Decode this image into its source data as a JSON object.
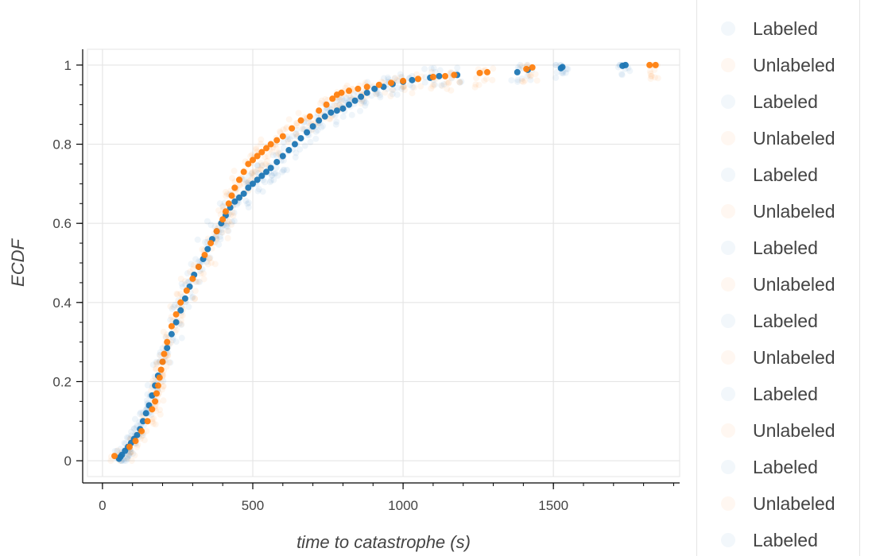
{
  "chart_data": {
    "type": "scatter",
    "xlabel": "time to catastrophe (s)",
    "ylabel": "ECDF",
    "xlim": [
      -50,
      1920
    ],
    "ylim": [
      -0.04,
      1.04
    ],
    "grid": true,
    "legend_placement": "right, outside plot",
    "x_ticks": [
      0,
      500,
      1000,
      1500
    ],
    "x_tick_labels": [
      "0",
      "500",
      "1000",
      "1500"
    ],
    "y_ticks": [
      0,
      0.2,
      0.4,
      0.6,
      0.8,
      1
    ],
    "y_tick_labels": [
      "0",
      "0.2",
      "0.4",
      "0.6",
      "0.8",
      "1"
    ],
    "colors": {
      "Labeled": "#1f77b4",
      "Unlabeled": "#ff7f0e"
    },
    "series": [
      {
        "name": "Labeled",
        "color": "#1f77b4",
        "points": [
          [
            55,
            0.005
          ],
          [
            60,
            0.01
          ],
          [
            65,
            0.015
          ],
          [
            75,
            0.025
          ],
          [
            85,
            0.035
          ],
          [
            95,
            0.045
          ],
          [
            105,
            0.055
          ],
          [
            115,
            0.065
          ],
          [
            125,
            0.08
          ],
          [
            135,
            0.1
          ],
          [
            145,
            0.12
          ],
          [
            155,
            0.14
          ],
          [
            165,
            0.165
          ],
          [
            175,
            0.19
          ],
          [
            185,
            0.215
          ],
          [
            200,
            0.25
          ],
          [
            215,
            0.285
          ],
          [
            230,
            0.32
          ],
          [
            245,
            0.35
          ],
          [
            260,
            0.38
          ],
          [
            275,
            0.41
          ],
          [
            290,
            0.44
          ],
          [
            305,
            0.47
          ],
          [
            320,
            0.49
          ],
          [
            335,
            0.51
          ],
          [
            350,
            0.535
          ],
          [
            365,
            0.56
          ],
          [
            380,
            0.58
          ],
          [
            395,
            0.6
          ],
          [
            410,
            0.62
          ],
          [
            425,
            0.64
          ],
          [
            440,
            0.655
          ],
          [
            455,
            0.665
          ],
          [
            470,
            0.675
          ],
          [
            485,
            0.69
          ],
          [
            500,
            0.7
          ],
          [
            515,
            0.71
          ],
          [
            530,
            0.72
          ],
          [
            545,
            0.73
          ],
          [
            560,
            0.74
          ],
          [
            580,
            0.755
          ],
          [
            600,
            0.77
          ],
          [
            620,
            0.785
          ],
          [
            640,
            0.8
          ],
          [
            660,
            0.815
          ],
          [
            680,
            0.83
          ],
          [
            700,
            0.845
          ],
          [
            720,
            0.86
          ],
          [
            740,
            0.87
          ],
          [
            760,
            0.88
          ],
          [
            780,
            0.885
          ],
          [
            800,
            0.89
          ],
          [
            820,
            0.9
          ],
          [
            840,
            0.91
          ],
          [
            860,
            0.92
          ],
          [
            880,
            0.93
          ],
          [
            905,
            0.94
          ],
          [
            935,
            0.945
          ],
          [
            965,
            0.952
          ],
          [
            1000,
            0.958
          ],
          [
            1030,
            0.962
          ],
          [
            1090,
            0.968
          ],
          [
            1120,
            0.972
          ],
          [
            1180,
            0.975
          ],
          [
            1380,
            0.982
          ],
          [
            1415,
            0.988
          ],
          [
            1525,
            0.992
          ],
          [
            1530,
            0.995
          ],
          [
            1730,
            0.998
          ],
          [
            1740,
            1.0
          ]
        ]
      },
      {
        "name": "Unlabeled",
        "color": "#ff7f0e",
        "points": [
          [
            40,
            0.012
          ],
          [
            90,
            0.035
          ],
          [
            110,
            0.05
          ],
          [
            130,
            0.075
          ],
          [
            150,
            0.1
          ],
          [
            165,
            0.13
          ],
          [
            175,
            0.15
          ],
          [
            180,
            0.17
          ],
          [
            185,
            0.19
          ],
          [
            190,
            0.21
          ],
          [
            195,
            0.23
          ],
          [
            200,
            0.25
          ],
          [
            205,
            0.27
          ],
          [
            215,
            0.3
          ],
          [
            230,
            0.34
          ],
          [
            245,
            0.37
          ],
          [
            260,
            0.4
          ],
          [
            280,
            0.43
          ],
          [
            300,
            0.46
          ],
          [
            320,
            0.49
          ],
          [
            340,
            0.52
          ],
          [
            360,
            0.55
          ],
          [
            380,
            0.58
          ],
          [
            400,
            0.61
          ],
          [
            410,
            0.63
          ],
          [
            420,
            0.65
          ],
          [
            430,
            0.67
          ],
          [
            440,
            0.69
          ],
          [
            455,
            0.71
          ],
          [
            470,
            0.73
          ],
          [
            485,
            0.75
          ],
          [
            500,
            0.76
          ],
          [
            515,
            0.77
          ],
          [
            530,
            0.78
          ],
          [
            545,
            0.79
          ],
          [
            560,
            0.8
          ],
          [
            580,
            0.81
          ],
          [
            600,
            0.82
          ],
          [
            630,
            0.84
          ],
          [
            660,
            0.86
          ],
          [
            690,
            0.87
          ],
          [
            720,
            0.885
          ],
          [
            745,
            0.9
          ],
          [
            765,
            0.915
          ],
          [
            780,
            0.925
          ],
          [
            795,
            0.93
          ],
          [
            820,
            0.935
          ],
          [
            850,
            0.94
          ],
          [
            880,
            0.945
          ],
          [
            920,
            0.95
          ],
          [
            960,
            0.955
          ],
          [
            1000,
            0.96
          ],
          [
            1050,
            0.965
          ],
          [
            1100,
            0.97
          ],
          [
            1140,
            0.972
          ],
          [
            1170,
            0.975
          ],
          [
            1255,
            0.98
          ],
          [
            1280,
            0.982
          ],
          [
            1410,
            0.99
          ],
          [
            1430,
            0.994
          ],
          [
            1820,
            1.0
          ],
          [
            1840,
            1.0
          ]
        ]
      }
    ]
  },
  "legend": {
    "items": [
      {
        "label": "Labeled",
        "color": "#1f77b4"
      },
      {
        "label": "Unlabeled",
        "color": "#ff7f0e"
      },
      {
        "label": "Labeled",
        "color": "#1f77b4"
      },
      {
        "label": "Unlabeled",
        "color": "#ff7f0e"
      },
      {
        "label": "Labeled",
        "color": "#1f77b4"
      },
      {
        "label": "Unlabeled",
        "color": "#ff7f0e"
      },
      {
        "label": "Labeled",
        "color": "#1f77b4"
      },
      {
        "label": "Unlabeled",
        "color": "#ff7f0e"
      },
      {
        "label": "Labeled",
        "color": "#1f77b4"
      },
      {
        "label": "Unlabeled",
        "color": "#ff7f0e"
      },
      {
        "label": "Labeled",
        "color": "#1f77b4"
      },
      {
        "label": "Unlabeled",
        "color": "#ff7f0e"
      },
      {
        "label": "Labeled",
        "color": "#1f77b4"
      },
      {
        "label": "Unlabeled",
        "color": "#ff7f0e"
      },
      {
        "label": "Labeled",
        "color": "#1f77b4"
      }
    ]
  }
}
